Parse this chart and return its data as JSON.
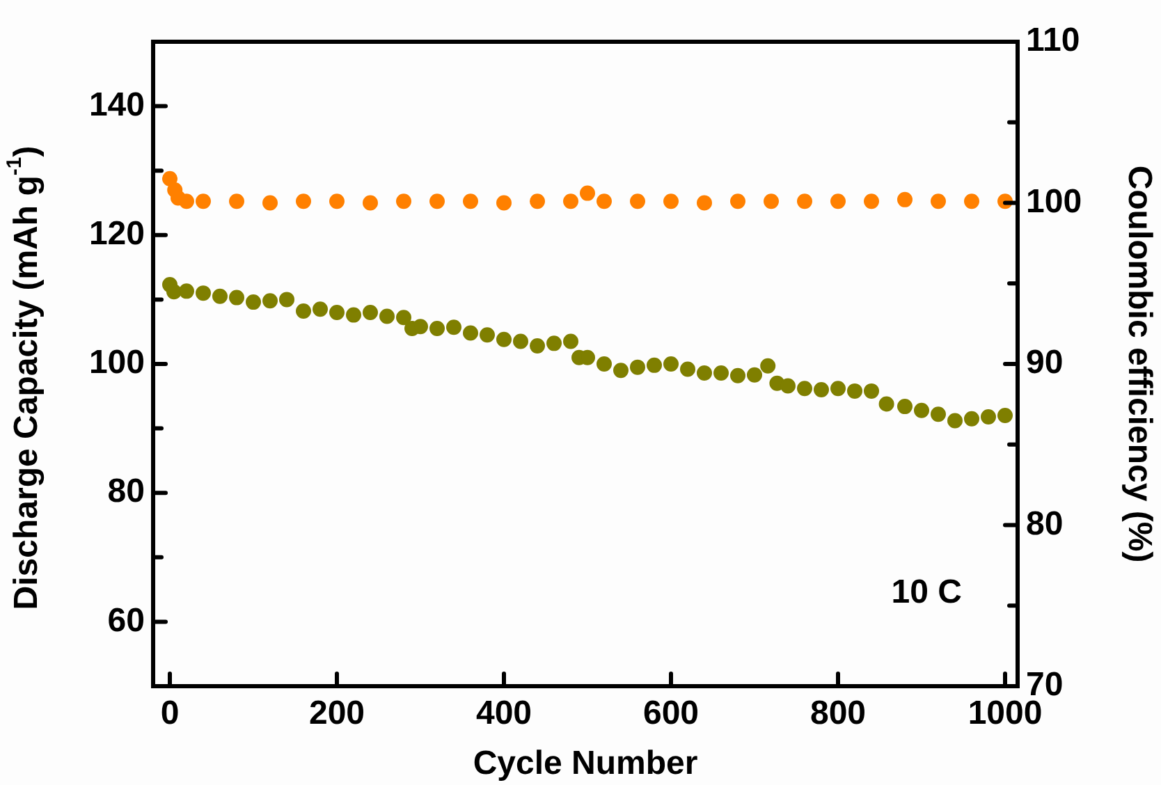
{
  "chart_data": {
    "type": "scatter",
    "xlabel": "Cycle Number",
    "ylabel": "Discharge Capacity (mAh g$^{-1}$)",
    "y2label": "Coulombic efficiency (%)",
    "xlim": [
      -20,
      1015
    ],
    "xticks": [
      0,
      200,
      400,
      600,
      800,
      1000
    ],
    "ylim": [
      50,
      150
    ],
    "yticks": [
      60,
      {
        "value": 70,
        "label": null
      },
      80,
      {
        "value": 90,
        "label": null
      },
      100,
      {
        "value": 110,
        "label": null
      },
      120,
      {
        "value": 130,
        "label": null
      },
      140
    ],
    "y2lim": [
      70,
      110
    ],
    "y2ticks": [
      70,
      {
        "value": 75,
        "label": null
      },
      80,
      {
        "value": 85,
        "label": null
      },
      90,
      {
        "value": 95,
        "label": null
      },
      100,
      {
        "value": 105,
        "label": null
      },
      110
    ],
    "marker": "circle",
    "grid": false,
    "annotations": [
      "10 C"
    ],
    "series": [
      {
        "color": "#ff8000",
        "axis": "y2",
        "x": [
          0,
          6,
          10,
          20,
          40,
          80,
          120,
          160,
          200,
          240,
          280,
          320,
          360,
          400,
          440,
          480,
          500,
          520,
          560,
          600,
          640,
          680,
          720,
          760,
          800,
          840,
          880,
          920,
          960,
          1000
        ],
        "values": [
          101.5,
          100.8,
          100.3,
          100.1,
          100.1,
          100.1,
          100.0,
          100.1,
          100.1,
          100.0,
          100.1,
          100.1,
          100.1,
          100.0,
          100.1,
          100.1,
          100.6,
          100.1,
          100.1,
          100.1,
          100.0,
          100.1,
          100.1,
          100.1,
          100.1,
          100.1,
          100.2,
          100.1,
          100.1,
          100.1
        ]
      },
      {
        "color": "#7f7f00",
        "axis": "y",
        "x": [
          0,
          5,
          20,
          40,
          60,
          80,
          100,
          120,
          140,
          160,
          180,
          200,
          220,
          240,
          260,
          280,
          290,
          300,
          320,
          340,
          360,
          380,
          400,
          420,
          440,
          460,
          480,
          490,
          500,
          520,
          540,
          560,
          580,
          600,
          620,
          640,
          660,
          680,
          700,
          716,
          727,
          740,
          760,
          780,
          800,
          820,
          840,
          858,
          880,
          900,
          920,
          940,
          960,
          980,
          1000
        ],
        "values": [
          112.3,
          111.2,
          111.3,
          111,
          110.5,
          110.3,
          109.6,
          109.8,
          110,
          108.2,
          108.5,
          108,
          107.6,
          108,
          107.4,
          107.2,
          105.5,
          105.8,
          105.5,
          105.7,
          104.8,
          104.5,
          103.8,
          103.5,
          102.8,
          103.2,
          103.5,
          101,
          101,
          100,
          99,
          99.5,
          99.8,
          100,
          99.2,
          98.6,
          98.6,
          98.2,
          98.3,
          99.7,
          97,
          96.6,
          96.2,
          96,
          96.2,
          95.8,
          95.8,
          93.8,
          93.4,
          92.8,
          92.2,
          91.2,
          91.5,
          91.8,
          92
        ]
      }
    ]
  }
}
